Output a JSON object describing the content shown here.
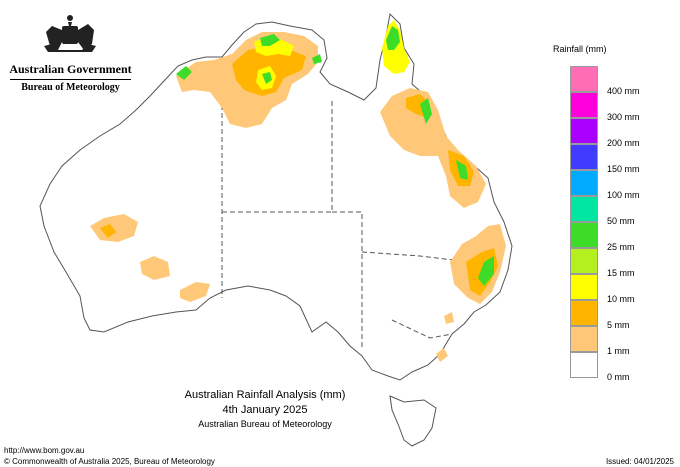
{
  "header": {
    "government": "Australian Government",
    "bureau": "Bureau of Meteorology"
  },
  "legend": {
    "title": "Rainfall (mm)",
    "items": [
      {
        "label": "400 mm",
        "color": "#ff6eb4"
      },
      {
        "label": "300 mm",
        "color": "#ff00dc"
      },
      {
        "label": "200 mm",
        "color": "#aa00ff"
      },
      {
        "label": "150 mm",
        "color": "#3f3cff"
      },
      {
        "label": "100 mm",
        "color": "#00aaff"
      },
      {
        "label": "50 mm",
        "color": "#00e6a0"
      },
      {
        "label": "25 mm",
        "color": "#3cdc28"
      },
      {
        "label": "15 mm",
        "color": "#b4f01e"
      },
      {
        "label": "10 mm",
        "color": "#ffff00"
      },
      {
        "label": "5 mm",
        "color": "#ffb400"
      },
      {
        "label": "1 mm",
        "color": "#ffc878"
      },
      {
        "label": "0 mm",
        "color": "#ffffff"
      }
    ]
  },
  "map": {
    "title": "Australian Rainfall Analysis (mm)",
    "date": "4th January 2025",
    "agency": "Australian Bureau of Meteorology"
  },
  "footer": {
    "url": "http://www.bom.gov.au",
    "copyright": "© Commonwealth of Australia 2025, Bureau of Meteorology",
    "issued": "Issued: 04/01/2025"
  }
}
